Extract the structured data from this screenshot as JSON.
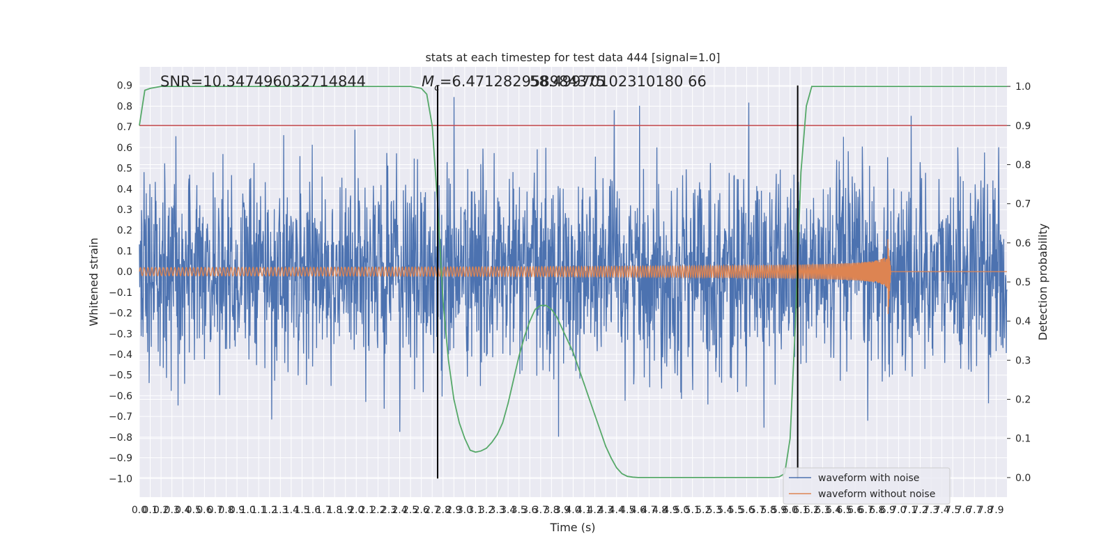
{
  "chart_data": {
    "type": "line",
    "title": "stats at each timestep for test data 444 [signal=1.0]",
    "xlabel": "Time (s)",
    "ylabel_left": "Whitened strain",
    "ylabel_right": "Detection probability",
    "xlim": [
      0.0,
      8.0
    ],
    "ylim_left": [
      -1.09,
      0.99
    ],
    "ylim_right": [
      -0.05,
      1.05
    ],
    "grid": true,
    "legend_position": "lower-right",
    "x_ticks": [
      0.0,
      0.1,
      0.2,
      0.3,
      0.4,
      0.5,
      0.6,
      0.7,
      0.8,
      0.9,
      1.0,
      1.1,
      1.2,
      1.3,
      1.4,
      1.5,
      1.6,
      1.7,
      1.8,
      1.9,
      2.0,
      2.1,
      2.2,
      2.3,
      2.4,
      2.5,
      2.6,
      2.7,
      2.8,
      2.9,
      3.0,
      3.1,
      3.2,
      3.3,
      3.4,
      3.5,
      3.6,
      3.7,
      3.8,
      3.9,
      4.0,
      4.1,
      4.2,
      4.3,
      4.4,
      4.5,
      4.6,
      4.7,
      4.8,
      4.9,
      5.0,
      5.1,
      5.2,
      5.3,
      5.4,
      5.5,
      5.6,
      5.7,
      5.8,
      5.9,
      6.0,
      6.1,
      6.2,
      6.3,
      6.4,
      6.5,
      6.6,
      6.7,
      6.8,
      6.9,
      7.0,
      7.1,
      7.2,
      7.3,
      7.4,
      7.5,
      7.6,
      7.7,
      7.8,
      7.9
    ],
    "x_tick_labels": [
      "0.0",
      "0.1",
      "0.2",
      "0.3",
      "0.4",
      "0.5",
      "0.6",
      "0.7",
      "0.8",
      "0.9",
      "1.0",
      "1.1",
      "1.2",
      "1.3",
      "1.4",
      "1.5",
      "1.6",
      "1.7",
      "1.8",
      "1.9",
      "2.0",
      "2.1",
      "2.2",
      "2.3",
      "2.4",
      "2.5",
      "2.6",
      "2.7",
      "2.8",
      "2.9",
      "3.0",
      "3.1",
      "3.2",
      "3.3",
      "3.4",
      "3.5",
      "3.6",
      "3.7",
      "3.8",
      "3.9",
      "4.0",
      "4.1",
      "4.2",
      "4.3",
      "4.4",
      "4.5",
      "4.6",
      "4.7",
      "4.8",
      "4.9",
      "5.0",
      "5.1",
      "5.2",
      "5.3",
      "5.4",
      "5.5",
      "5.6",
      "5.7",
      "5.8",
      "5.9",
      "6.0",
      "6.1",
      "6.2",
      "6.3",
      "6.4",
      "6.5",
      "6.6",
      "6.7",
      "6.8",
      "6.9",
      "7.0",
      "7.1",
      "7.2",
      "7.3",
      "7.4",
      "7.5",
      "7.6",
      "7.7",
      "7.8",
      "7.9"
    ],
    "y_left_ticks": [
      0.9,
      0.8,
      0.7,
      0.6,
      0.5,
      0.4,
      0.3,
      0.2,
      0.1,
      0.0,
      -0.1,
      -0.2,
      -0.3,
      -0.4,
      -0.5,
      -0.6,
      -0.7,
      -0.8,
      -0.9,
      -1.0
    ],
    "y_left_tick_labels": [
      "0.9",
      "0.8",
      "0.7",
      "0.6",
      "0.5",
      "0.4",
      "0.3",
      "0.2",
      "0.1",
      "0.0",
      "−0.1",
      "−0.2",
      "−0.3",
      "−0.4",
      "−0.5",
      "−0.6",
      "−0.7",
      "−0.8",
      "−0.9",
      "−1.0"
    ],
    "y_right_ticks": [
      1.0,
      0.9,
      0.8,
      0.7,
      0.6,
      0.5,
      0.4,
      0.3,
      0.2,
      0.1,
      0.0
    ],
    "y_right_tick_labels": [
      "1.0",
      "0.9",
      "0.8",
      "0.7",
      "0.6",
      "0.5",
      "0.4",
      "0.3",
      "0.2",
      "0.1",
      "0.0"
    ],
    "annotations": {
      "snr": "SNR=10.347496032714844",
      "mc_prefix": "M",
      "mc_sub": "c",
      "mc_value": "=6.471282958984375",
      "overlap_value": "58.49970102310180 66"
    },
    "series": [
      {
        "name": "waveform with noise",
        "color": "#4c72b0",
        "axis": "left",
        "description": "dense noise-dominated whitened strain, amplitude mostly within ±0.5 with spikes to ±0.9"
      },
      {
        "name": "waveform without noise",
        "color": "#dd8452",
        "axis": "left",
        "chirp_start_x": 0.0,
        "chirp_start_amplitude": 0.02,
        "chirp_peak_x": 6.9,
        "chirp_peak_amplitude": 0.24,
        "chirp_end_x": 6.93
      },
      {
        "color": "#55a868",
        "axis": "right",
        "x": [
          0.0,
          0.05,
          0.1,
          0.2,
          0.5,
          1.0,
          2.0,
          2.5,
          2.6,
          2.65,
          2.7,
          2.75,
          2.8,
          2.85,
          2.9,
          2.95,
          3.0,
          3.05,
          3.1,
          3.15,
          3.2,
          3.25,
          3.3,
          3.35,
          3.4,
          3.45,
          3.5,
          3.55,
          3.6,
          3.65,
          3.7,
          3.75,
          3.8,
          3.85,
          3.9,
          3.95,
          4.0,
          4.05,
          4.1,
          4.15,
          4.2,
          4.25,
          4.3,
          4.35,
          4.4,
          4.45,
          4.5,
          4.55,
          4.6,
          4.7,
          4.8,
          5.0,
          5.5,
          5.85,
          5.9,
          5.95,
          6.0,
          6.05,
          6.1,
          6.15,
          6.2,
          6.5,
          7.0,
          7.5,
          8.0
        ],
        "y": [
          0.9,
          0.99,
          0.995,
          1.0,
          1.0,
          1.0,
          1.0,
          1.0,
          0.995,
          0.98,
          0.9,
          0.7,
          0.45,
          0.3,
          0.2,
          0.14,
          0.1,
          0.07,
          0.065,
          0.068,
          0.075,
          0.09,
          0.11,
          0.14,
          0.19,
          0.25,
          0.31,
          0.36,
          0.4,
          0.43,
          0.44,
          0.44,
          0.43,
          0.41,
          0.38,
          0.35,
          0.32,
          0.28,
          0.24,
          0.2,
          0.16,
          0.12,
          0.08,
          0.05,
          0.025,
          0.01,
          0.003,
          0.001,
          0.0,
          0.0,
          0.0,
          0.0,
          0.0,
          0.0,
          0.002,
          0.01,
          0.1,
          0.4,
          0.78,
          0.95,
          1.0,
          1.0,
          1.0,
          1.0,
          1.0
        ]
      }
    ],
    "threshold": {
      "color": "#c44e52",
      "axis": "right",
      "value": 0.9
    },
    "markers": {
      "color": "#000000",
      "x": [
        2.75,
        6.07
      ],
      "y_range_left": [
        -1.0,
        0.9
      ]
    }
  }
}
